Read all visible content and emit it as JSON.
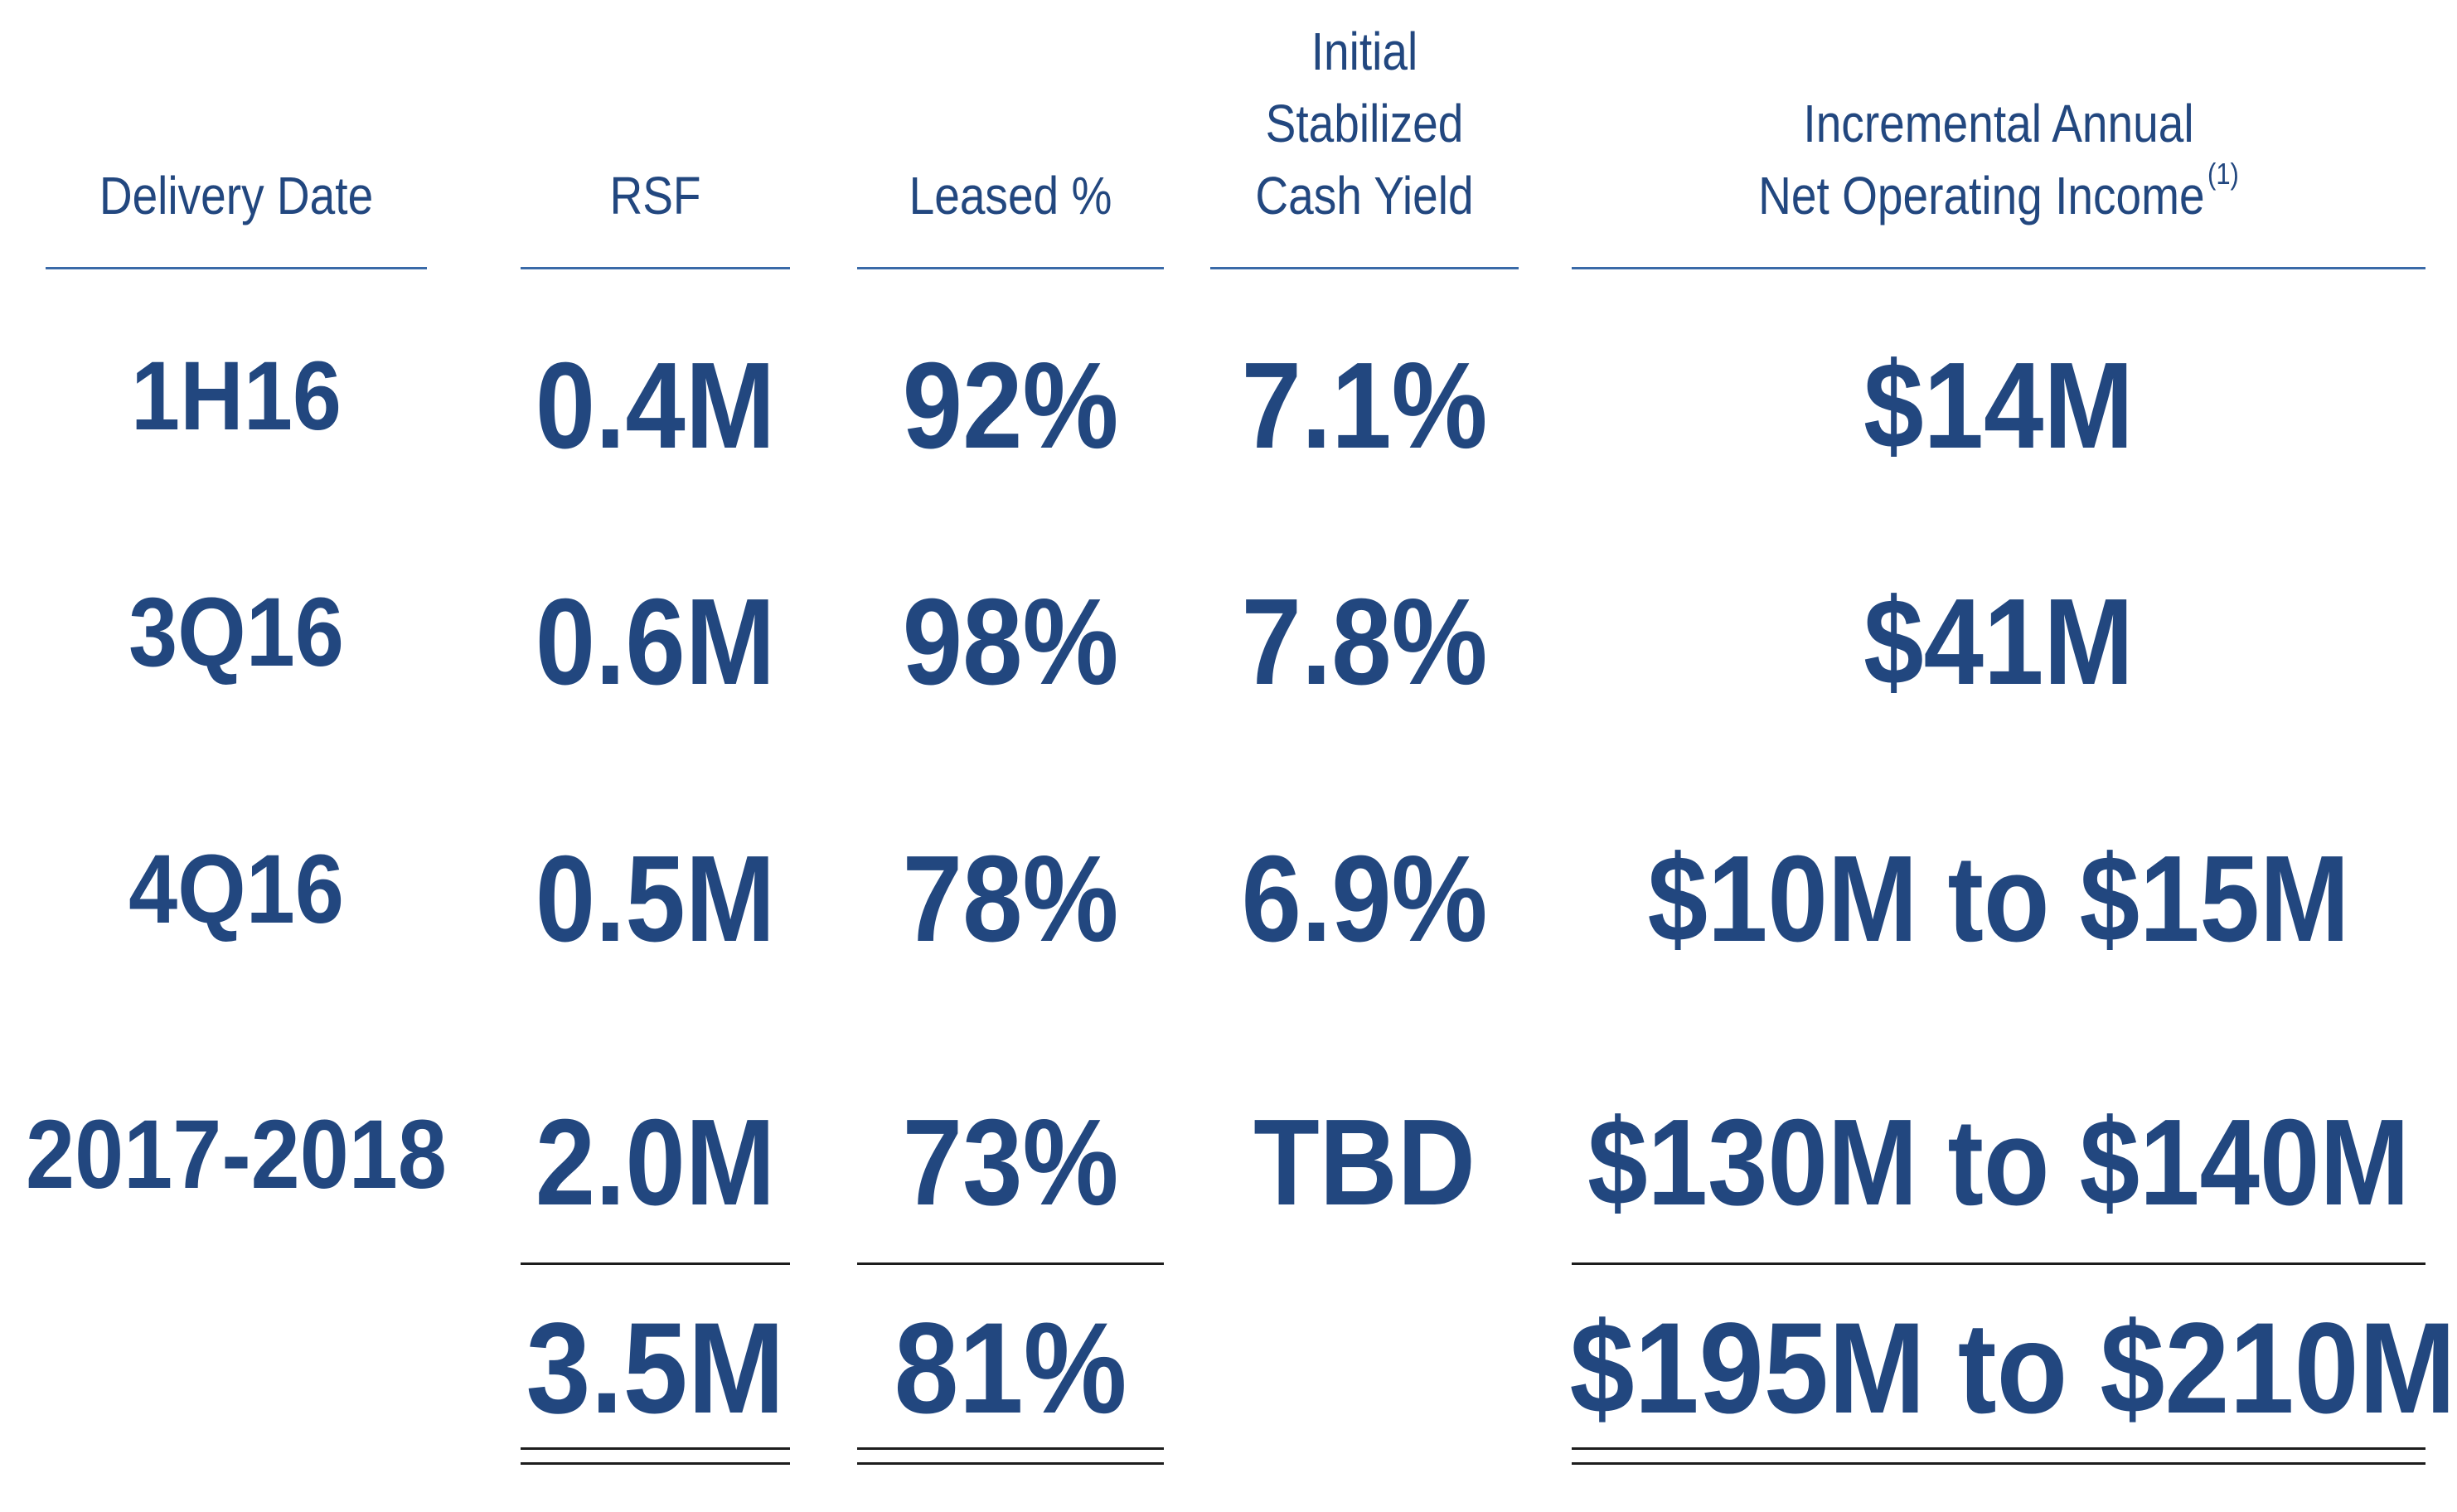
{
  "columns": [
    {
      "header": [
        "Delivery Date"
      ]
    },
    {
      "header": [
        "RSF"
      ]
    },
    {
      "header": [
        "Leased %"
      ]
    },
    {
      "header": [
        "Initial",
        "Stabilized",
        "Cash Yield"
      ]
    },
    {
      "header": [
        "Incremental Annual",
        "Net Operating Income"
      ],
      "footnote": "(1)"
    }
  ],
  "rows": [
    {
      "delivery": "1H16",
      "rsf": "0.4M",
      "leased": "92%",
      "yield": "7.1%",
      "noi": "$14M"
    },
    {
      "delivery": "3Q16",
      "rsf": "0.6M",
      "leased": "98%",
      "yield": "7.8%",
      "noi": "$41M"
    },
    {
      "delivery": "4Q16",
      "rsf": "0.5M",
      "leased": "78%",
      "yield": "6.9%",
      "noi": "$10M to $15M"
    },
    {
      "delivery": "2017-2018",
      "rsf": "2.0M",
      "leased": "73%",
      "yield": "TBD",
      "noi": "$130M to $140M"
    }
  ],
  "totals": {
    "rsf": "3.5M",
    "leased": "81%",
    "noi": "$195M to $210M"
  },
  "colors": {
    "text": "#22477f",
    "header_rule": "#3a6aa8",
    "total_rule": "#1d1d1d"
  }
}
